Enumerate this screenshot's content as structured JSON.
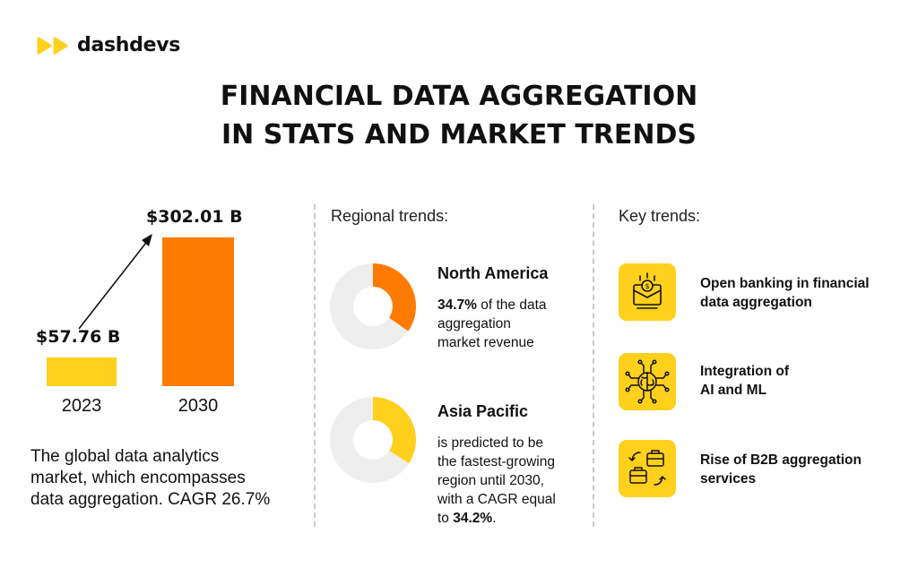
{
  "brand": {
    "name": "dashdevs"
  },
  "headline": {
    "line1": "FINANCIAL DATA AGGREGATION",
    "line2": "IN STATS AND MARKET TRENDS"
  },
  "colors": {
    "yellow": "#ffd01c",
    "orange": "#ff7a00",
    "ring": "#eeeeee",
    "text": "#111111"
  },
  "chart_data": [
    {
      "type": "bar",
      "categories": [
        "2023",
        "2030"
      ],
      "values": [
        57.76,
        302.01
      ],
      "value_labels": [
        "$57.76 B",
        "$302.01 B"
      ],
      "colors": [
        "#ffd01c",
        "#ff7a00"
      ],
      "note": "The global data analytics market, which encompasses data aggregation. CAGR 26.7%"
    },
    {
      "type": "pie",
      "title": "North America",
      "values": [
        34.7,
        65.3
      ],
      "colors": [
        "#ff7a00",
        "#eeeeee"
      ]
    },
    {
      "type": "pie",
      "title": "Asia Pacific",
      "values": [
        34.2,
        65.8
      ],
      "colors": [
        "#ffd01c",
        "#eeeeee"
      ]
    }
  ],
  "market": {
    "note_line1": "The global data analytics",
    "note_line2": "market, which encompasses",
    "note_line3": "data aggregation. CAGR 26.7%"
  },
  "regional": {
    "title": "Regional trends:",
    "north_america": {
      "name": "North America",
      "highlight": "34.7%",
      "line1_rest": " of the data",
      "line2": "aggregation",
      "line3": "market revenue"
    },
    "asia_pacific": {
      "name": "Asia Pacific",
      "line1": "is predicted to be",
      "line2": "the fastest-growing",
      "line3": "region until 2030,",
      "line4": "with a CAGR equal",
      "line5_pre": "to ",
      "highlight": "34.2%",
      "line5_post": "."
    }
  },
  "key_trends": {
    "title": "Key trends:",
    "items": [
      {
        "line1": "Open banking in financial",
        "line2": "data aggregation",
        "icon": "bank-card-icon"
      },
      {
        "line1": "Integration of",
        "line2": "AI and ML",
        "icon": "ai-brain-icon"
      },
      {
        "line1": "Rise of B2B aggregation",
        "line2": "services",
        "icon": "b2b-exchange-icon"
      }
    ]
  }
}
